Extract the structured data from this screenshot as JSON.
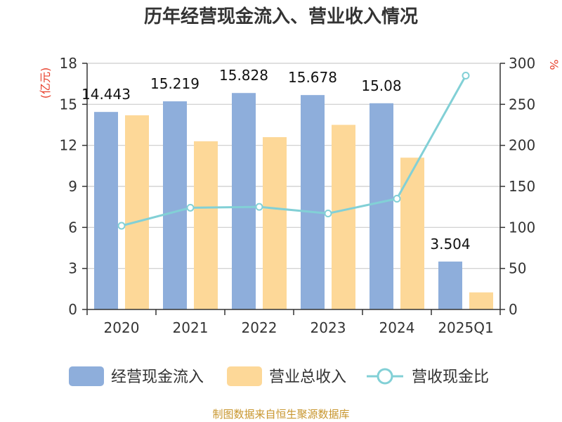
{
  "chart_data": {
    "type": "bar",
    "title": "历年经营现金流入、营业收入情况",
    "categories": [
      "2020",
      "2021",
      "2022",
      "2023",
      "2024",
      "2025Q1"
    ],
    "y_left": {
      "unit": "(亿元)",
      "range": [
        0,
        18
      ],
      "ticks": [
        "0",
        "3",
        "6",
        "9",
        "12",
        "15",
        "18"
      ]
    },
    "y_right": {
      "unit": "%",
      "range": [
        0,
        300
      ],
      "ticks": [
        "0",
        "50",
        "100",
        "150",
        "200",
        "250",
        "300"
      ]
    },
    "series": [
      {
        "name": "经营现金流入",
        "type": "bar",
        "axis": "left",
        "color": "#8eaedb",
        "values": [
          14.443,
          15.219,
          15.828,
          15.678,
          15.08,
          3.504
        ],
        "labels": [
          "14.443",
          "15.219",
          "15.828",
          "15.678",
          "15.08",
          "3.504"
        ]
      },
      {
        "name": "营业总收入",
        "type": "bar",
        "axis": "left",
        "color": "#fdd898",
        "values": [
          14.2,
          12.3,
          12.6,
          13.5,
          11.1,
          1.25
        ]
      },
      {
        "name": "营收现金比",
        "type": "line",
        "axis": "right",
        "color": "#82d0d6",
        "values": [
          102,
          124,
          125,
          117,
          135,
          285
        ]
      }
    ],
    "grid": true,
    "legend_position": "bottom"
  },
  "footer": {
    "source": "制图数据来自恒生聚源数据库"
  }
}
